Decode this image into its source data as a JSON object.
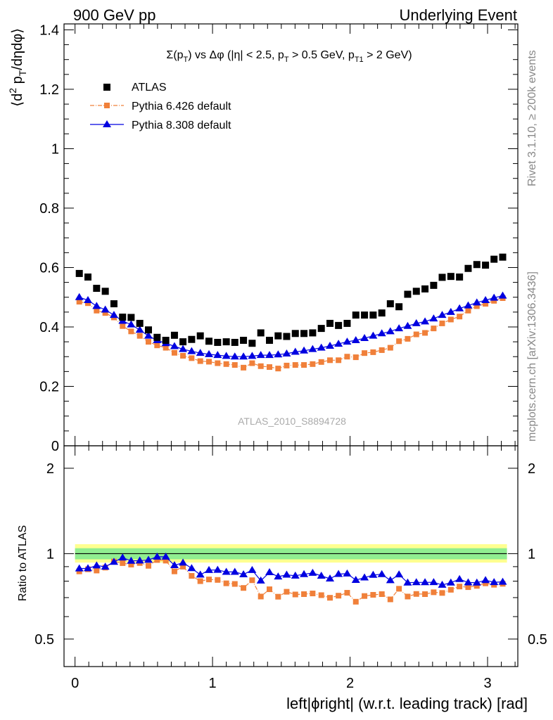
{
  "header": {
    "left_title": "900 GeV pp",
    "right_title": "Underlying Event"
  },
  "side_labels": {
    "rivet": "Rivet 3.1.10, ≥ 200k events",
    "mcplots": "mcplots.cern.ch [arXiv:1306.3436]"
  },
  "analysis_label": "ATLAS_2010_S8894728",
  "colors": {
    "data": "#000000",
    "pythia6": "#f0803a",
    "pythia8": "#0000e0",
    "band_inner": "#90ee90",
    "band_outer": "#ffff90"
  },
  "chart_data": [
    {
      "type": "scatter",
      "title_parts": {
        "sum": "Σ(p",
        "sum_sub": "T",
        "vs": ") vs Δφ (|η| < 2.5, p",
        "pt_sub": "T",
        "cut1": " > 0.5 GeV, p",
        "pt1_sub": "T1",
        "cut2": " > 2 GeV)"
      },
      "ylabel_parts": {
        "open": "⟨d",
        "sup2": "2",
        "p": " p",
        "sub_t": "T",
        "close": "/dηdφ⟩"
      },
      "xlim": [
        -0.08,
        3.22
      ],
      "ylim": [
        0,
        1.42
      ],
      "y_ticks": [
        0,
        0.2,
        0.4,
        0.6,
        0.8,
        1,
        1.2,
        1.4
      ],
      "y_tick_labels": [
        "0",
        "0.2",
        "0.4",
        "0.6",
        "0.8",
        "1",
        "1.2",
        "1.4"
      ],
      "legend": [
        {
          "name": "ATLAS",
          "style": "data"
        },
        {
          "name": "Pythia 6.426 default",
          "style": "pythia6"
        },
        {
          "name": "Pythia 8.308 default",
          "style": "pythia8"
        }
      ],
      "x": [
        0.031,
        0.094,
        0.157,
        0.22,
        0.283,
        0.346,
        0.408,
        0.471,
        0.534,
        0.597,
        0.66,
        0.723,
        0.785,
        0.848,
        0.911,
        0.974,
        1.037,
        1.1,
        1.162,
        1.225,
        1.288,
        1.351,
        1.414,
        1.477,
        1.539,
        1.602,
        1.665,
        1.728,
        1.791,
        1.854,
        1.916,
        1.979,
        2.042,
        2.105,
        2.168,
        2.231,
        2.293,
        2.356,
        2.419,
        2.482,
        2.545,
        2.608,
        2.67,
        2.733,
        2.796,
        2.859,
        2.922,
        2.985,
        3.047,
        3.11
      ],
      "series": [
        {
          "name": "ATLAS",
          "values": [
            0.58,
            0.568,
            0.53,
            0.52,
            0.478,
            0.433,
            0.432,
            0.412,
            0.39,
            0.365,
            0.355,
            0.372,
            0.35,
            0.358,
            0.37,
            0.352,
            0.348,
            0.35,
            0.348,
            0.355,
            0.345,
            0.38,
            0.355,
            0.37,
            0.368,
            0.378,
            0.378,
            0.38,
            0.395,
            0.412,
            0.405,
            0.412,
            0.44,
            0.44,
            0.44,
            0.447,
            0.478,
            0.468,
            0.51,
            0.52,
            0.528,
            0.54,
            0.567,
            0.57,
            0.568,
            0.597,
            0.61,
            0.608,
            0.628,
            0.635
          ]
        },
        {
          "name": "Pythia 6.426 default",
          "values": [
            0.485,
            0.48,
            0.455,
            0.447,
            0.432,
            0.403,
            0.385,
            0.37,
            0.35,
            0.338,
            0.33,
            0.313,
            0.303,
            0.295,
            0.285,
            0.283,
            0.278,
            0.275,
            0.272,
            0.263,
            0.278,
            0.268,
            0.265,
            0.26,
            0.27,
            0.272,
            0.272,
            0.275,
            0.282,
            0.288,
            0.288,
            0.3,
            0.298,
            0.312,
            0.315,
            0.322,
            0.33,
            0.352,
            0.36,
            0.375,
            0.38,
            0.395,
            0.412,
            0.425,
            0.435,
            0.455,
            0.47,
            0.478,
            0.488,
            0.497
          ]
        },
        {
          "name": "Pythia 8.308 default",
          "values": [
            0.5,
            0.49,
            0.47,
            0.458,
            0.44,
            0.42,
            0.408,
            0.39,
            0.37,
            0.355,
            0.345,
            0.335,
            0.325,
            0.318,
            0.312,
            0.308,
            0.305,
            0.302,
            0.3,
            0.3,
            0.302,
            0.305,
            0.305,
            0.307,
            0.31,
            0.316,
            0.32,
            0.325,
            0.33,
            0.336,
            0.343,
            0.35,
            0.355,
            0.362,
            0.37,
            0.378,
            0.385,
            0.395,
            0.403,
            0.412,
            0.418,
            0.428,
            0.44,
            0.45,
            0.462,
            0.472,
            0.482,
            0.49,
            0.498,
            0.505
          ]
        }
      ]
    },
    {
      "type": "scatter",
      "ylabel": "Ratio to ATLAS",
      "xlabel": "left|ϕright| (w.r.t. leading track) [rad]",
      "xlim": [
        -0.08,
        3.22
      ],
      "ylim": [
        0.4,
        2.4
      ],
      "y_scale": "log",
      "x_ticks": [
        0,
        1,
        2,
        3
      ],
      "x_tick_labels": [
        "0",
        "1",
        "2",
        "3"
      ],
      "y_ticks": [
        0.5,
        1,
        2
      ],
      "y_tick_labels": [
        "0.5",
        "1",
        "2"
      ],
      "bands": {
        "inner": [
          0.955,
          1.045
        ],
        "outer": [
          0.93,
          1.08
        ]
      },
      "series": [
        {
          "name": "Pythia 6.426 default",
          "values": [
            0.866,
            0.881,
            0.872,
            0.893,
            0.938,
            0.926,
            0.915,
            0.927,
            0.906,
            0.95,
            0.945,
            0.866,
            0.9,
            0.835,
            0.8,
            0.811,
            0.808,
            0.786,
            0.782,
            0.757,
            0.806,
            0.706,
            0.749,
            0.705,
            0.734,
            0.718,
            0.72,
            0.724,
            0.714,
            0.699,
            0.711,
            0.728,
            0.677,
            0.709,
            0.716,
            0.72,
            0.69,
            0.752,
            0.706,
            0.721,
            0.72,
            0.731,
            0.727,
            0.746,
            0.766,
            0.762,
            0.77,
            0.786,
            0.777,
            0.783
          ]
        },
        {
          "name": "Pythia 8.308 default",
          "values": [
            0.886,
            0.887,
            0.908,
            0.899,
            0.935,
            0.968,
            0.943,
            0.945,
            0.95,
            0.975,
            0.975,
            0.91,
            0.929,
            0.888,
            0.843,
            0.875,
            0.876,
            0.862,
            0.862,
            0.845,
            0.875,
            0.803,
            0.859,
            0.83,
            0.842,
            0.836,
            0.846,
            0.855,
            0.835,
            0.816,
            0.847,
            0.85,
            0.807,
            0.823,
            0.841,
            0.846,
            0.805,
            0.844,
            0.79,
            0.792,
            0.792,
            0.793,
            0.776,
            0.79,
            0.813,
            0.791,
            0.79,
            0.806,
            0.793,
            0.795
          ]
        }
      ]
    }
  ]
}
